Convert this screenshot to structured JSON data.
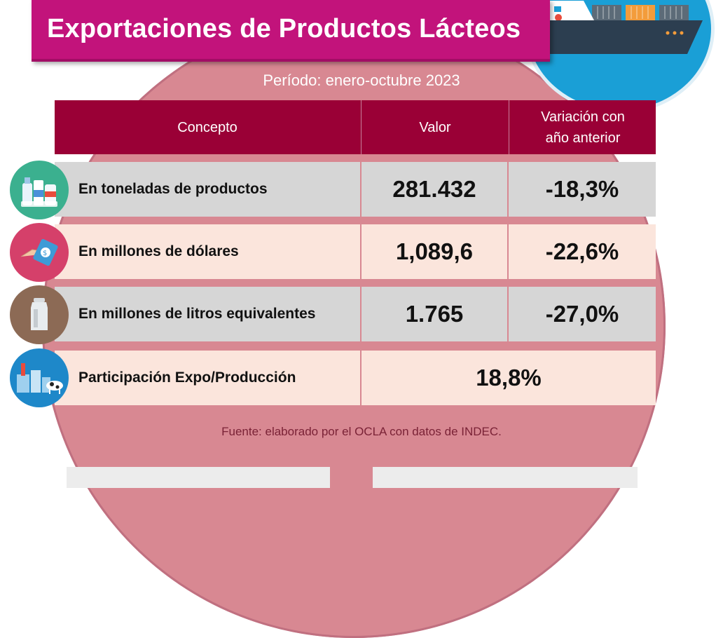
{
  "header": {
    "title": "Exportaciones de Productos Lácteos",
    "period": "Período: enero-octubre 2023"
  },
  "table": {
    "columns": [
      "Concepto",
      "Valor",
      "Variación con",
      "año anterior"
    ],
    "rows": [
      {
        "concept": "En toneladas de productos",
        "value": "281.432",
        "variation": "-18,3%",
        "icon": "dairy-products-icon"
      },
      {
        "concept": "En millones de dólares",
        "value": "1,089,6",
        "variation": "-22,6%",
        "icon": "money-hand-icon"
      },
      {
        "concept": "En millones de litros equivalentes",
        "value": "1.765",
        "variation": "-27,0%",
        "icon": "milk-can-icon"
      },
      {
        "concept": "Participación Expo/Producción",
        "value": "18,8%",
        "icon": "dairy-farm-icon"
      }
    ]
  },
  "footer": {
    "source": "Fuente: elaborado por el OCLA con datos de INDEC."
  },
  "colors": {
    "title_bg": "#c2137b",
    "header_bg": "#9a0036",
    "circle_bg": "#d88892",
    "ship_circle": "#1a9fd6"
  }
}
